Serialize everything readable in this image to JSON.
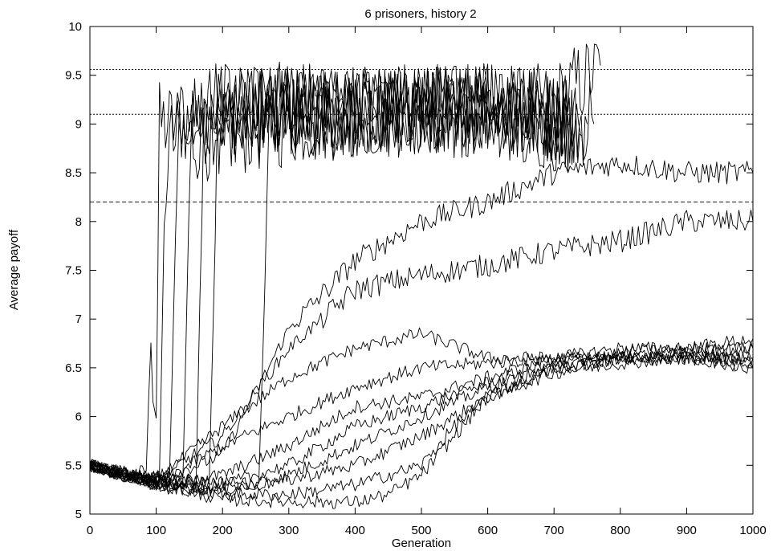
{
  "chart_data": {
    "type": "line",
    "title": "6 prisoners, history 2",
    "xlabel": "Generation",
    "ylabel": "Average payoff",
    "xlim": [
      0,
      1000
    ],
    "ylim": [
      5,
      10
    ],
    "xticks": [
      "0",
      "100",
      "200",
      "300",
      "400",
      "500",
      "600",
      "700",
      "800",
      "900",
      "1000"
    ],
    "yticks": [
      "5",
      "5.5",
      "6",
      "6.5",
      "7",
      "7.5",
      "8",
      "8.5",
      "9",
      "9.5",
      "10"
    ],
    "grid": false,
    "reference_lines": [
      {
        "y": 9.56,
        "style": "dotted"
      },
      {
        "y": 9.1,
        "style": "dotted"
      },
      {
        "y": 8.2,
        "style": "dashed"
      }
    ],
    "series": [
      {
        "x": [
          0,
          50,
          85,
          92,
          95,
          100,
          105,
          400,
          500,
          600,
          700,
          770
        ],
        "y": [
          5.5,
          5.4,
          5.45,
          6.8,
          6.2,
          6.0,
          9.0,
          9.1,
          9.2,
          9.1,
          9.2,
          9.6
        ]
      },
      {
        "x": [
          0,
          50,
          105,
          112,
          120,
          400,
          600,
          760
        ],
        "y": [
          5.5,
          5.4,
          5.35,
          7.9,
          8.8,
          9.1,
          9.2,
          9.0
        ]
      },
      {
        "x": [
          0,
          60,
          120,
          132,
          140,
          400,
          600,
          750
        ],
        "y": [
          5.5,
          5.4,
          5.3,
          8.6,
          9.1,
          9.2,
          9.1,
          9.0
        ]
      },
      {
        "x": [
          0,
          60,
          140,
          152,
          160,
          400,
          600,
          740
        ],
        "y": [
          5.5,
          5.4,
          5.3,
          8.8,
          9.2,
          9.1,
          9.2,
          8.9
        ]
      },
      {
        "x": [
          0,
          60,
          160,
          172,
          180,
          400,
          600,
          730
        ],
        "y": [
          5.5,
          5.4,
          5.3,
          9.0,
          9.2,
          9.1,
          9.1,
          8.9
        ]
      },
      {
        "x": [
          0,
          60,
          180,
          192,
          200,
          400,
          600,
          720
        ],
        "y": [
          5.5,
          5.4,
          5.3,
          8.7,
          9.1,
          9.2,
          9.1,
          9.0
        ]
      },
      {
        "x": [
          0,
          60,
          255,
          270,
          280,
          400,
          600,
          720
        ],
        "y": [
          5.5,
          5.4,
          5.3,
          8.9,
          9.2,
          9.1,
          9.2,
          9.1
        ]
      },
      {
        "x": [
          0,
          100,
          200,
          300,
          400,
          500,
          600,
          700,
          800,
          900,
          1000
        ],
        "y": [
          5.5,
          5.35,
          5.6,
          6.9,
          7.6,
          8.0,
          8.2,
          8.5,
          8.6,
          8.5,
          8.5
        ]
      },
      {
        "x": [
          0,
          100,
          200,
          300,
          400,
          500,
          600,
          700,
          800,
          900,
          1000
        ],
        "y": [
          5.5,
          5.35,
          5.8,
          6.7,
          7.3,
          7.45,
          7.55,
          7.7,
          7.8,
          8.0,
          8.0
        ]
      },
      {
        "x": [
          0,
          100,
          200,
          300,
          400,
          500,
          600,
          700,
          800,
          900,
          1000
        ],
        "y": [
          5.5,
          5.35,
          5.9,
          6.4,
          6.7,
          6.85,
          6.6,
          6.6,
          6.6,
          6.65,
          6.7
        ]
      },
      {
        "x": [
          0,
          100,
          200,
          300,
          400,
          500,
          600,
          700,
          800,
          900,
          1000
        ],
        "y": [
          5.5,
          5.3,
          5.7,
          6.0,
          6.3,
          6.5,
          6.55,
          6.6,
          6.6,
          6.6,
          6.6
        ]
      },
      {
        "x": [
          0,
          100,
          200,
          300,
          400,
          500,
          600,
          700,
          800,
          900,
          1000
        ],
        "y": [
          5.5,
          5.3,
          5.4,
          5.7,
          6.1,
          6.2,
          6.4,
          6.6,
          6.7,
          6.7,
          6.8
        ]
      },
      {
        "x": [
          0,
          100,
          200,
          300,
          400,
          500,
          600,
          700,
          800,
          900,
          1000
        ],
        "y": [
          5.5,
          5.3,
          5.3,
          5.5,
          5.9,
          6.1,
          6.35,
          6.55,
          6.65,
          6.7,
          6.7
        ]
      },
      {
        "x": [
          0,
          100,
          200,
          300,
          400,
          500,
          600,
          700,
          800,
          900,
          1000
        ],
        "y": [
          5.5,
          5.3,
          5.25,
          5.4,
          5.7,
          6.0,
          6.3,
          6.5,
          6.6,
          6.65,
          6.6
        ]
      },
      {
        "x": [
          0,
          100,
          200,
          300,
          400,
          500,
          600,
          700,
          800,
          900,
          1000
        ],
        "y": [
          5.5,
          5.3,
          5.25,
          5.35,
          5.5,
          5.8,
          6.2,
          6.45,
          6.55,
          6.6,
          6.6
        ]
      },
      {
        "x": [
          0,
          100,
          200,
          300,
          400,
          500,
          550,
          600,
          700,
          800,
          900,
          1000
        ],
        "y": [
          5.5,
          5.3,
          5.2,
          5.2,
          5.3,
          5.5,
          5.9,
          6.2,
          6.5,
          6.6,
          6.6,
          6.5
        ]
      },
      {
        "x": [
          0,
          100,
          200,
          300,
          400,
          450,
          500,
          550,
          600,
          700,
          800,
          900,
          1000
        ],
        "y": [
          5.5,
          5.3,
          5.15,
          5.13,
          5.12,
          5.2,
          5.4,
          5.8,
          6.2,
          6.5,
          6.6,
          6.6,
          6.5
        ]
      }
    ]
  }
}
